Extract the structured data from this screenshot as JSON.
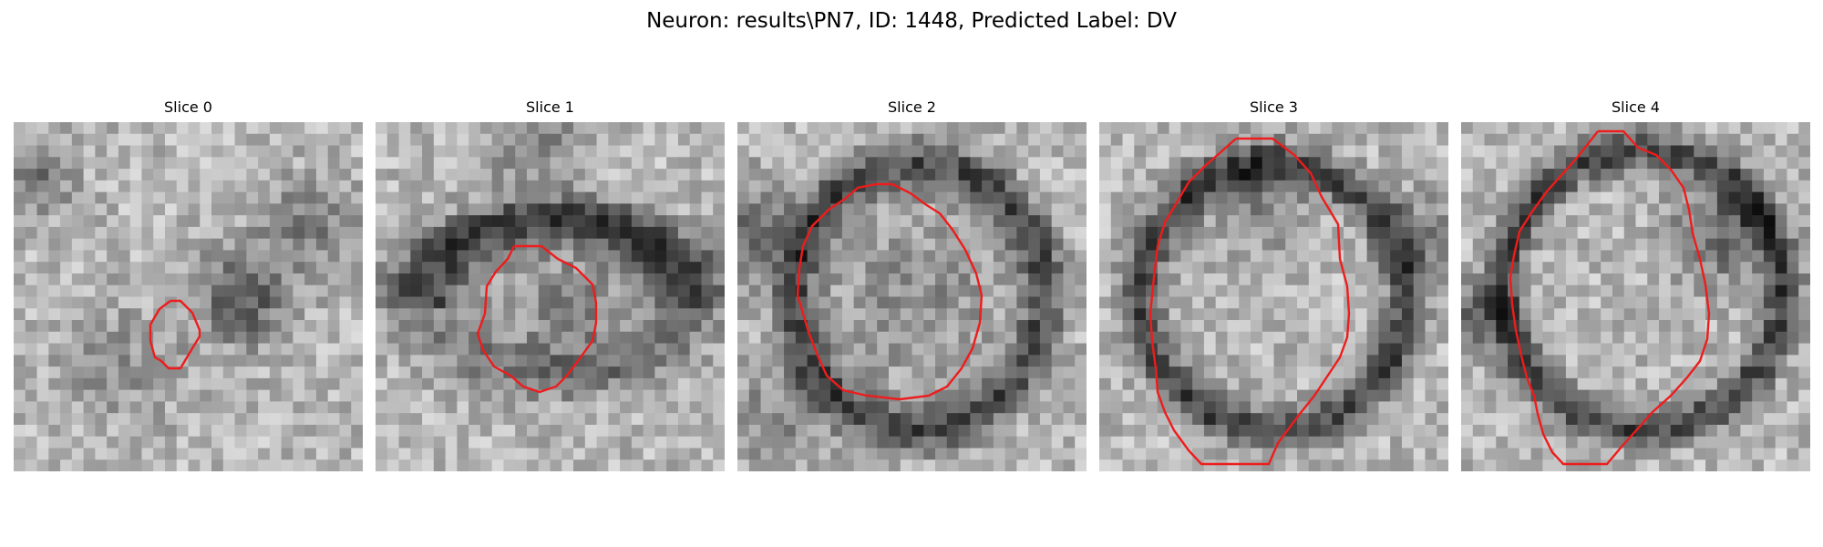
{
  "figure": {
    "title": "Neuron: results\\PN7, ID: 1448, Predicted Label: DV"
  },
  "panels": [
    {
      "label": "Slice 0"
    },
    {
      "label": "Slice 1"
    },
    {
      "label": "Slice 2"
    },
    {
      "label": "Slice 3"
    },
    {
      "label": "Slice 4"
    }
  ],
  "colors": {
    "contour": "#ee1c1c"
  }
}
